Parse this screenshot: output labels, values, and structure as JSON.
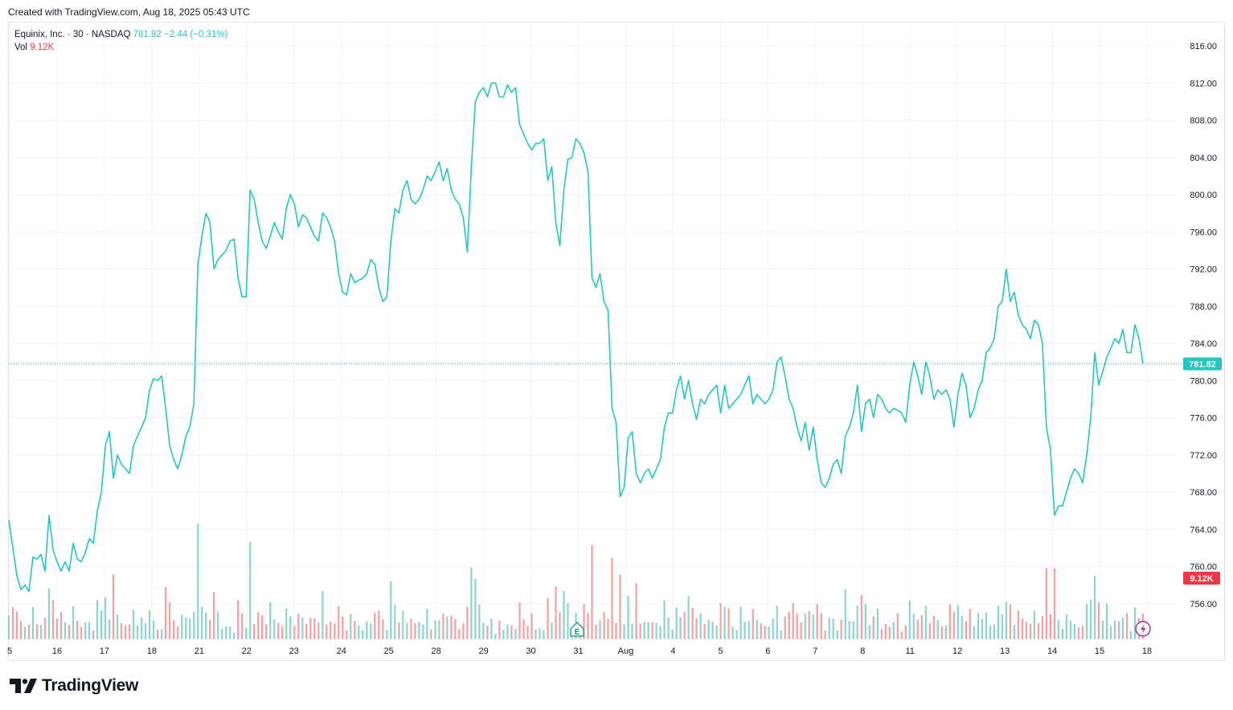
{
  "header": {
    "created_text": "Created with TradingView.com, Aug 18, 2025 05:43 UTC"
  },
  "legend": {
    "symbol": "Equinix, Inc. · 30 · NASDAQ",
    "last": "781.82",
    "change": "−2.44 (−0.31%)",
    "vol_label": "Vol",
    "vol_value": "9.12K"
  },
  "badges": {
    "last_price": "781.82",
    "last_volume": "9.12K",
    "earnings": "E"
  },
  "branding": {
    "logo_text": "TradingView"
  },
  "colors": {
    "line": "#22c7bf",
    "vol_up": "#8ed3cc",
    "vol_down": "#f2a0a2",
    "grid": "#f0f3fa",
    "last_tag": "#22c7bf",
    "vol_tag": "#f23645"
  },
  "chart_data": {
    "type": "line",
    "ylim": [
      752,
      818
    ],
    "y_ticks": [
      "816.00",
      "812.00",
      "808.00",
      "804.00",
      "800.00",
      "796.00",
      "792.00",
      "788.00",
      "784.00",
      "780.00",
      "776.00",
      "772.00",
      "768.00",
      "764.00",
      "760.00",
      "756.00"
    ],
    "x_ticks": [
      "5",
      "16",
      "17",
      "18",
      "21",
      "22",
      "23",
      "24",
      "25",
      "28",
      "29",
      "30",
      "31",
      "Aug",
      "4",
      "5",
      "6",
      "7",
      "8",
      "11",
      "12",
      "13",
      "14",
      "15",
      "18"
    ],
    "series": [
      {
        "values": [
          765.0,
          762.0,
          759.0,
          757.5,
          758.0,
          757.3,
          761.0,
          760.8,
          761.3,
          759.5,
          765.5,
          761.8,
          760.5,
          759.5,
          760.5,
          759.5,
          762.5,
          760.8,
          760.5,
          761.5,
          763.0,
          762.5,
          766.0,
          768.0,
          773.0,
          774.5,
          769.5,
          772.0,
          771.0,
          770.5,
          770.0,
          773.0,
          774.0,
          775.0,
          776.0,
          779.0,
          780.2,
          780.0,
          780.5,
          777.0,
          773.0,
          771.5,
          770.5,
          772.0,
          774.0,
          775.0,
          777.5,
          792.5,
          795.5,
          798.0,
          797.0,
          792.0,
          793.0,
          793.5,
          794.0,
          795.0,
          795.2,
          791.0,
          789.0,
          789.0,
          800.5,
          799.5,
          797.0,
          795.0,
          794.2,
          795.5,
          797.0,
          796.0,
          795.2,
          798.5,
          800.0,
          799.0,
          796.5,
          797.8,
          797.5,
          796.5,
          795.5,
          795.0,
          798.0,
          797.5,
          796.5,
          795.0,
          791.5,
          789.5,
          789.2,
          791.5,
          790.5,
          790.8,
          791.0,
          791.5,
          793.0,
          792.5,
          790.0,
          788.5,
          789.0,
          795.0,
          798.5,
          798.0,
          800.5,
          801.5,
          799.5,
          799.0,
          799.5,
          800.5,
          802.0,
          801.5,
          802.5,
          803.5,
          801.5,
          802.8,
          800.5,
          799.5,
          799.0,
          797.5,
          793.8,
          803.0,
          810.0,
          811.0,
          811.5,
          810.5,
          812.0,
          812.0,
          810.5,
          810.5,
          811.8,
          811.0,
          811.5,
          807.5,
          806.5,
          805.5,
          804.8,
          805.5,
          805.5,
          806.0,
          801.5,
          803.0,
          797.0,
          794.5,
          800.5,
          803.8,
          804.0,
          806.0,
          805.5,
          804.5,
          802.5,
          791.0,
          790.0,
          791.5,
          788.5,
          787.5,
          777.0,
          775.5,
          767.5,
          768.5,
          773.8,
          774.5,
          770.0,
          769.0,
          770.0,
          770.5,
          769.5,
          770.5,
          771.5,
          775.0,
          776.5,
          776.5,
          779.0,
          780.5,
          778.0,
          780.0,
          777.5,
          775.8,
          778.0,
          777.5,
          778.5,
          779.0,
          779.5,
          776.5,
          779.5,
          777.0,
          777.5,
          778.0,
          778.5,
          779.5,
          780.5,
          777.5,
          778.5,
          778.0,
          777.5,
          778.0,
          779.0,
          782.0,
          782.5,
          780.5,
          778.0,
          777.0,
          775.0,
          773.5,
          775.5,
          772.5,
          775.0,
          771.5,
          769.0,
          768.5,
          769.5,
          771.0,
          771.5,
          770.0,
          774.0,
          775.0,
          776.5,
          779.5,
          774.5,
          777.5,
          778.0,
          776.0,
          778.5,
          778.0,
          777.0,
          776.5,
          777.0,
          776.8,
          776.5,
          775.5,
          779.5,
          782.0,
          780.5,
          778.5,
          782.0,
          780.5,
          778.0,
          779.0,
          778.5,
          779.0,
          778.0,
          775.0,
          778.5,
          780.8,
          779.5,
          776.0,
          777.0,
          779.0,
          780.0,
          783.0,
          783.5,
          784.5,
          788.0,
          788.5,
          792.0,
          788.5,
          789.5,
          787.0,
          786.0,
          785.5,
          784.5,
          786.5,
          786.0,
          784.0,
          775.0,
          772.5,
          765.5,
          766.5,
          766.5,
          768.0,
          769.5,
          770.5,
          770.0,
          769.0,
          772.0,
          776.0,
          783.0,
          779.5,
          781.0,
          782.5,
          783.5,
          784.5,
          784.0,
          785.5,
          783.0,
          783.0,
          786.0,
          784.5,
          781.8
        ]
      }
    ]
  }
}
